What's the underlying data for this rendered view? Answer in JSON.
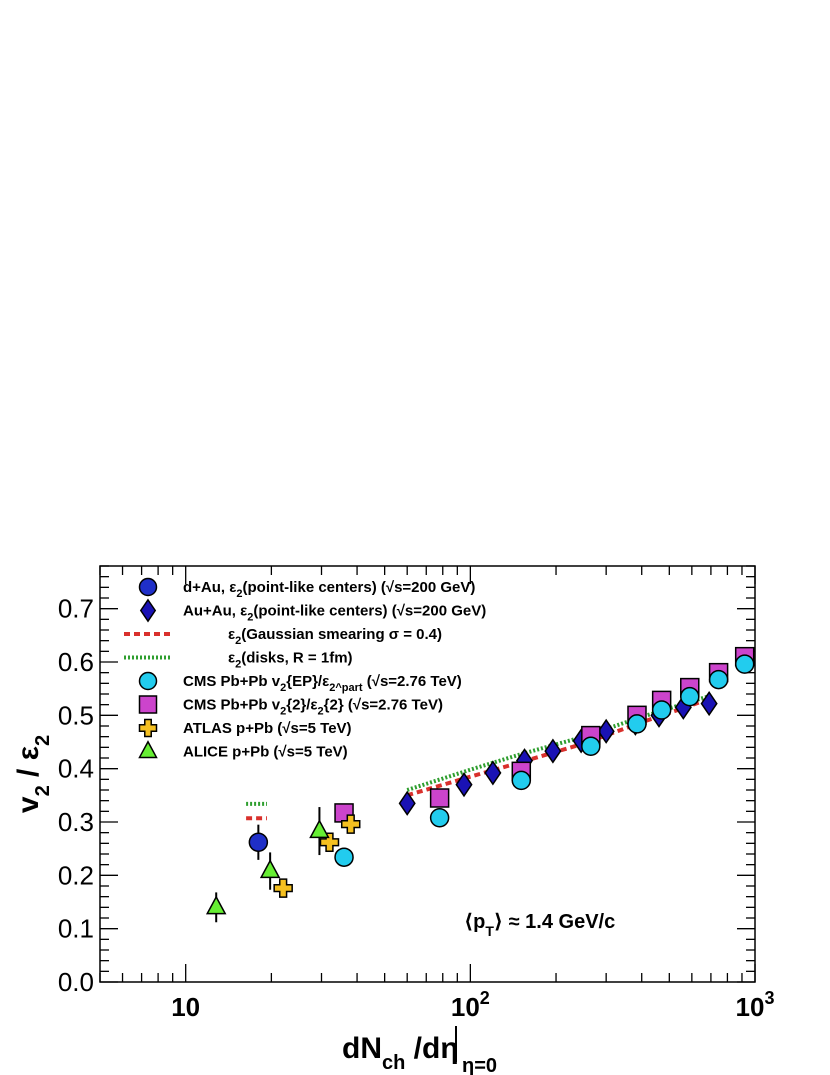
{
  "chart_data": {
    "type": "scatter",
    "x_scale": "log",
    "xlim": [
      5,
      1000
    ],
    "ylim": [
      0,
      0.78
    ],
    "xlabel": "dN_ch /dη|_η=0",
    "ylabel": "v_2 / ε_2",
    "x_tick_labels": [
      "10",
      "10^2",
      "10^3"
    ],
    "y_tick_labels": [
      "0.0",
      "0.1",
      "0.2",
      "0.3",
      "0.4",
      "0.5",
      "0.6",
      "0.7"
    ],
    "annotation": "⟨p_T⟩ ≈ 1.4 GeV/c",
    "colors": {
      "dAu": "#1f2fc8",
      "AuAu": "#1a12b4",
      "gaussian": "#d9302c",
      "disks": "#2e9e2e",
      "cms_ep": "#22ccee",
      "cms_2": "#cc44cc",
      "atlas": "#f5c020",
      "alice": "#66ee33"
    },
    "legend": [
      {
        "marker": "circle",
        "color_key": "dAu",
        "label": "d+Au, ε_2(point-like centers) (√s=200 GeV)"
      },
      {
        "marker": "diamond",
        "color_key": "AuAu",
        "label": "Au+Au, ε_2(point-like centers) (√s=200 GeV)"
      },
      {
        "marker": "dashed",
        "color_key": "gaussian",
        "label": "ε_2(Gaussian smearing σ = 0.4)"
      },
      {
        "marker": "dotted",
        "color_key": "disks",
        "label": "ε_2(disks, R = 1fm)"
      },
      {
        "marker": "circle-open",
        "color_key": "cms_ep",
        "label": "CMS Pb+Pb v_2{EP}/ε_2^part (√s=2.76 TeV)"
      },
      {
        "marker": "square",
        "color_key": "cms_2",
        "label": "CMS Pb+Pb v_2{2}/ε_2{2} (√s=2.76 TeV)"
      },
      {
        "marker": "cross",
        "color_key": "atlas",
        "label": "ATLAS p+Pb (√s=5 TeV)"
      },
      {
        "marker": "triangle",
        "color_key": "alice",
        "label": "ALICE p+Pb (√s=5 TeV)"
      }
    ],
    "series": [
      {
        "key": "dAu",
        "marker": "circle",
        "points": [
          {
            "x": 18,
            "y": 0.262,
            "err": 0.033
          }
        ]
      },
      {
        "key": "AuAu",
        "marker": "diamond",
        "points": [
          {
            "x": 60,
            "y": 0.335
          },
          {
            "x": 95,
            "y": 0.37
          },
          {
            "x": 120,
            "y": 0.392
          },
          {
            "x": 155,
            "y": 0.415
          },
          {
            "x": 195,
            "y": 0.433
          },
          {
            "x": 245,
            "y": 0.452
          },
          {
            "x": 300,
            "y": 0.47
          },
          {
            "x": 380,
            "y": 0.485
          },
          {
            "x": 460,
            "y": 0.5
          },
          {
            "x": 560,
            "y": 0.515
          },
          {
            "x": 690,
            "y": 0.522
          }
        ]
      },
      {
        "key": "cms_ep",
        "marker": "circle-open",
        "points": [
          {
            "x": 36,
            "y": 0.234
          },
          {
            "x": 78,
            "y": 0.308
          },
          {
            "x": 151,
            "y": 0.378
          },
          {
            "x": 265,
            "y": 0.442
          },
          {
            "x": 385,
            "y": 0.484
          },
          {
            "x": 470,
            "y": 0.51
          },
          {
            "x": 590,
            "y": 0.535
          },
          {
            "x": 745,
            "y": 0.567
          },
          {
            "x": 920,
            "y": 0.596
          }
        ]
      },
      {
        "key": "cms_2",
        "marker": "square",
        "points": [
          {
            "x": 36,
            "y": 0.317
          },
          {
            "x": 78,
            "y": 0.345
          },
          {
            "x": 151,
            "y": 0.395
          },
          {
            "x": 265,
            "y": 0.462
          },
          {
            "x": 385,
            "y": 0.5
          },
          {
            "x": 470,
            "y": 0.528
          },
          {
            "x": 590,
            "y": 0.552
          },
          {
            "x": 745,
            "y": 0.58
          },
          {
            "x": 920,
            "y": 0.61
          }
        ]
      },
      {
        "key": "atlas",
        "marker": "cross",
        "points": [
          {
            "x": 22,
            "y": 0.176
          },
          {
            "x": 32,
            "y": 0.262
          },
          {
            "x": 38,
            "y": 0.296
          }
        ]
      },
      {
        "key": "alice",
        "marker": "triangle",
        "points": [
          {
            "x": 12.8,
            "y": 0.14,
            "err": 0.028
          },
          {
            "x": 19.8,
            "y": 0.208,
            "err": 0.035
          },
          {
            "x": 29.5,
            "y": 0.283,
            "err": 0.045
          }
        ]
      }
    ],
    "curves": [
      {
        "key": "gaussian",
        "style": "dashed",
        "points": [
          {
            "x": 60,
            "y": 0.35
          },
          {
            "x": 100,
            "y": 0.385
          },
          {
            "x": 150,
            "y": 0.412
          },
          {
            "x": 250,
            "y": 0.447
          },
          {
            "x": 400,
            "y": 0.487
          },
          {
            "x": 550,
            "y": 0.512
          },
          {
            "x": 700,
            "y": 0.532
          }
        ]
      },
      {
        "key": "disks",
        "style": "dotted",
        "points": [
          {
            "x": 60,
            "y": 0.36
          },
          {
            "x": 100,
            "y": 0.398
          },
          {
            "x": 150,
            "y": 0.427
          },
          {
            "x": 250,
            "y": 0.46
          },
          {
            "x": 400,
            "y": 0.497
          },
          {
            "x": 550,
            "y": 0.52
          },
          {
            "x": 700,
            "y": 0.537
          }
        ]
      },
      {
        "key": "gaussian",
        "style": "dashed",
        "points": [
          {
            "x": 16.3,
            "y": 0.307
          },
          {
            "x": 19.3,
            "y": 0.307
          }
        ]
      },
      {
        "key": "disks",
        "style": "dotted",
        "points": [
          {
            "x": 16.3,
            "y": 0.334
          },
          {
            "x": 19.3,
            "y": 0.334
          }
        ]
      }
    ]
  }
}
